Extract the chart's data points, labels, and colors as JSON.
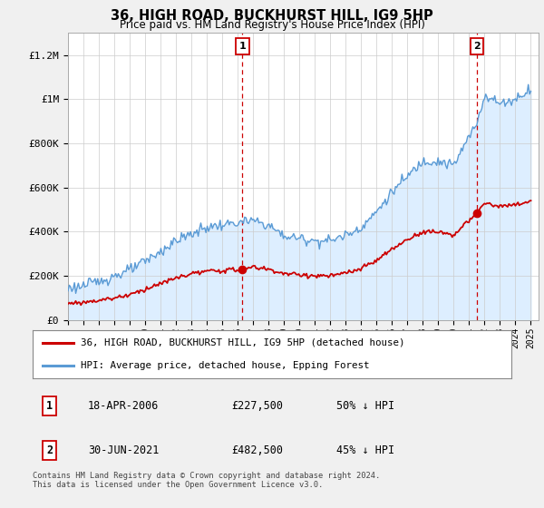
{
  "title": "36, HIGH ROAD, BUCKHURST HILL, IG9 5HP",
  "subtitle": "Price paid vs. HM Land Registry's House Price Index (HPI)",
  "legend_line1": "36, HIGH ROAD, BUCKHURST HILL, IG9 5HP (detached house)",
  "legend_line2": "HPI: Average price, detached house, Epping Forest",
  "table_rows": [
    {
      "num": "1",
      "date": "18-APR-2006",
      "price": "£227,500",
      "hpi": "50% ↓ HPI"
    },
    {
      "num": "2",
      "date": "30-JUN-2021",
      "price": "£482,500",
      "hpi": "45% ↓ HPI"
    }
  ],
  "footer": "Contains HM Land Registry data © Crown copyright and database right 2024.\nThis data is licensed under the Open Government Licence v3.0.",
  "hpi_line_color": "#5b9bd5",
  "hpi_fill_color": "#ddeeff",
  "price_color": "#cc0000",
  "vline_color": "#cc0000",
  "background_color": "#f0f0f0",
  "plot_bg": "#ffffff",
  "ylim": [
    0,
    1300000
  ],
  "yticks": [
    0,
    200000,
    400000,
    600000,
    800000,
    1000000,
    1200000
  ],
  "ytick_labels": [
    "£0",
    "£200K",
    "£400K",
    "£600K",
    "£800K",
    "£1M",
    "£1.2M"
  ],
  "sale1_year": 2006.29,
  "sale1_price": 227500,
  "sale2_year": 2021.5,
  "sale2_price": 482500,
  "hpi_anchors_x": [
    1995,
    1996,
    1997,
    1998,
    1999,
    2000,
    2001,
    2002,
    2003,
    2004,
    2005,
    2006,
    2007,
    2008,
    2009,
    2010,
    2011,
    2012,
    2013,
    2014,
    2015,
    2016,
    2017,
    2018,
    2019,
    2020,
    2021,
    2021.5,
    2022,
    2023,
    2024,
    2025
  ],
  "hpi_anchors_y": [
    145000,
    155000,
    175000,
    200000,
    225000,
    265000,
    310000,
    360000,
    390000,
    420000,
    430000,
    440000,
    450000,
    430000,
    380000,
    370000,
    360000,
    360000,
    385000,
    420000,
    490000,
    580000,
    650000,
    720000,
    720000,
    700000,
    830000,
    890000,
    1020000,
    980000,
    1000000,
    1050000
  ],
  "price_anchors_x": [
    1995,
    1996,
    1997,
    1998,
    1999,
    2000,
    2001,
    2002,
    2003,
    2004,
    2005,
    2006.29,
    2007,
    2008,
    2009,
    2010,
    2011,
    2012,
    2013,
    2014,
    2015,
    2016,
    2017,
    2018,
    2019,
    2020,
    2021.5,
    2022,
    2023,
    2024,
    2025
  ],
  "price_anchors_y": [
    75000,
    80000,
    90000,
    100000,
    115000,
    140000,
    165000,
    190000,
    210000,
    220000,
    225000,
    227500,
    240000,
    230000,
    210000,
    205000,
    200000,
    200000,
    212000,
    232000,
    270000,
    320000,
    365000,
    400000,
    400000,
    385000,
    482500,
    530000,
    515000,
    520000,
    540000
  ]
}
